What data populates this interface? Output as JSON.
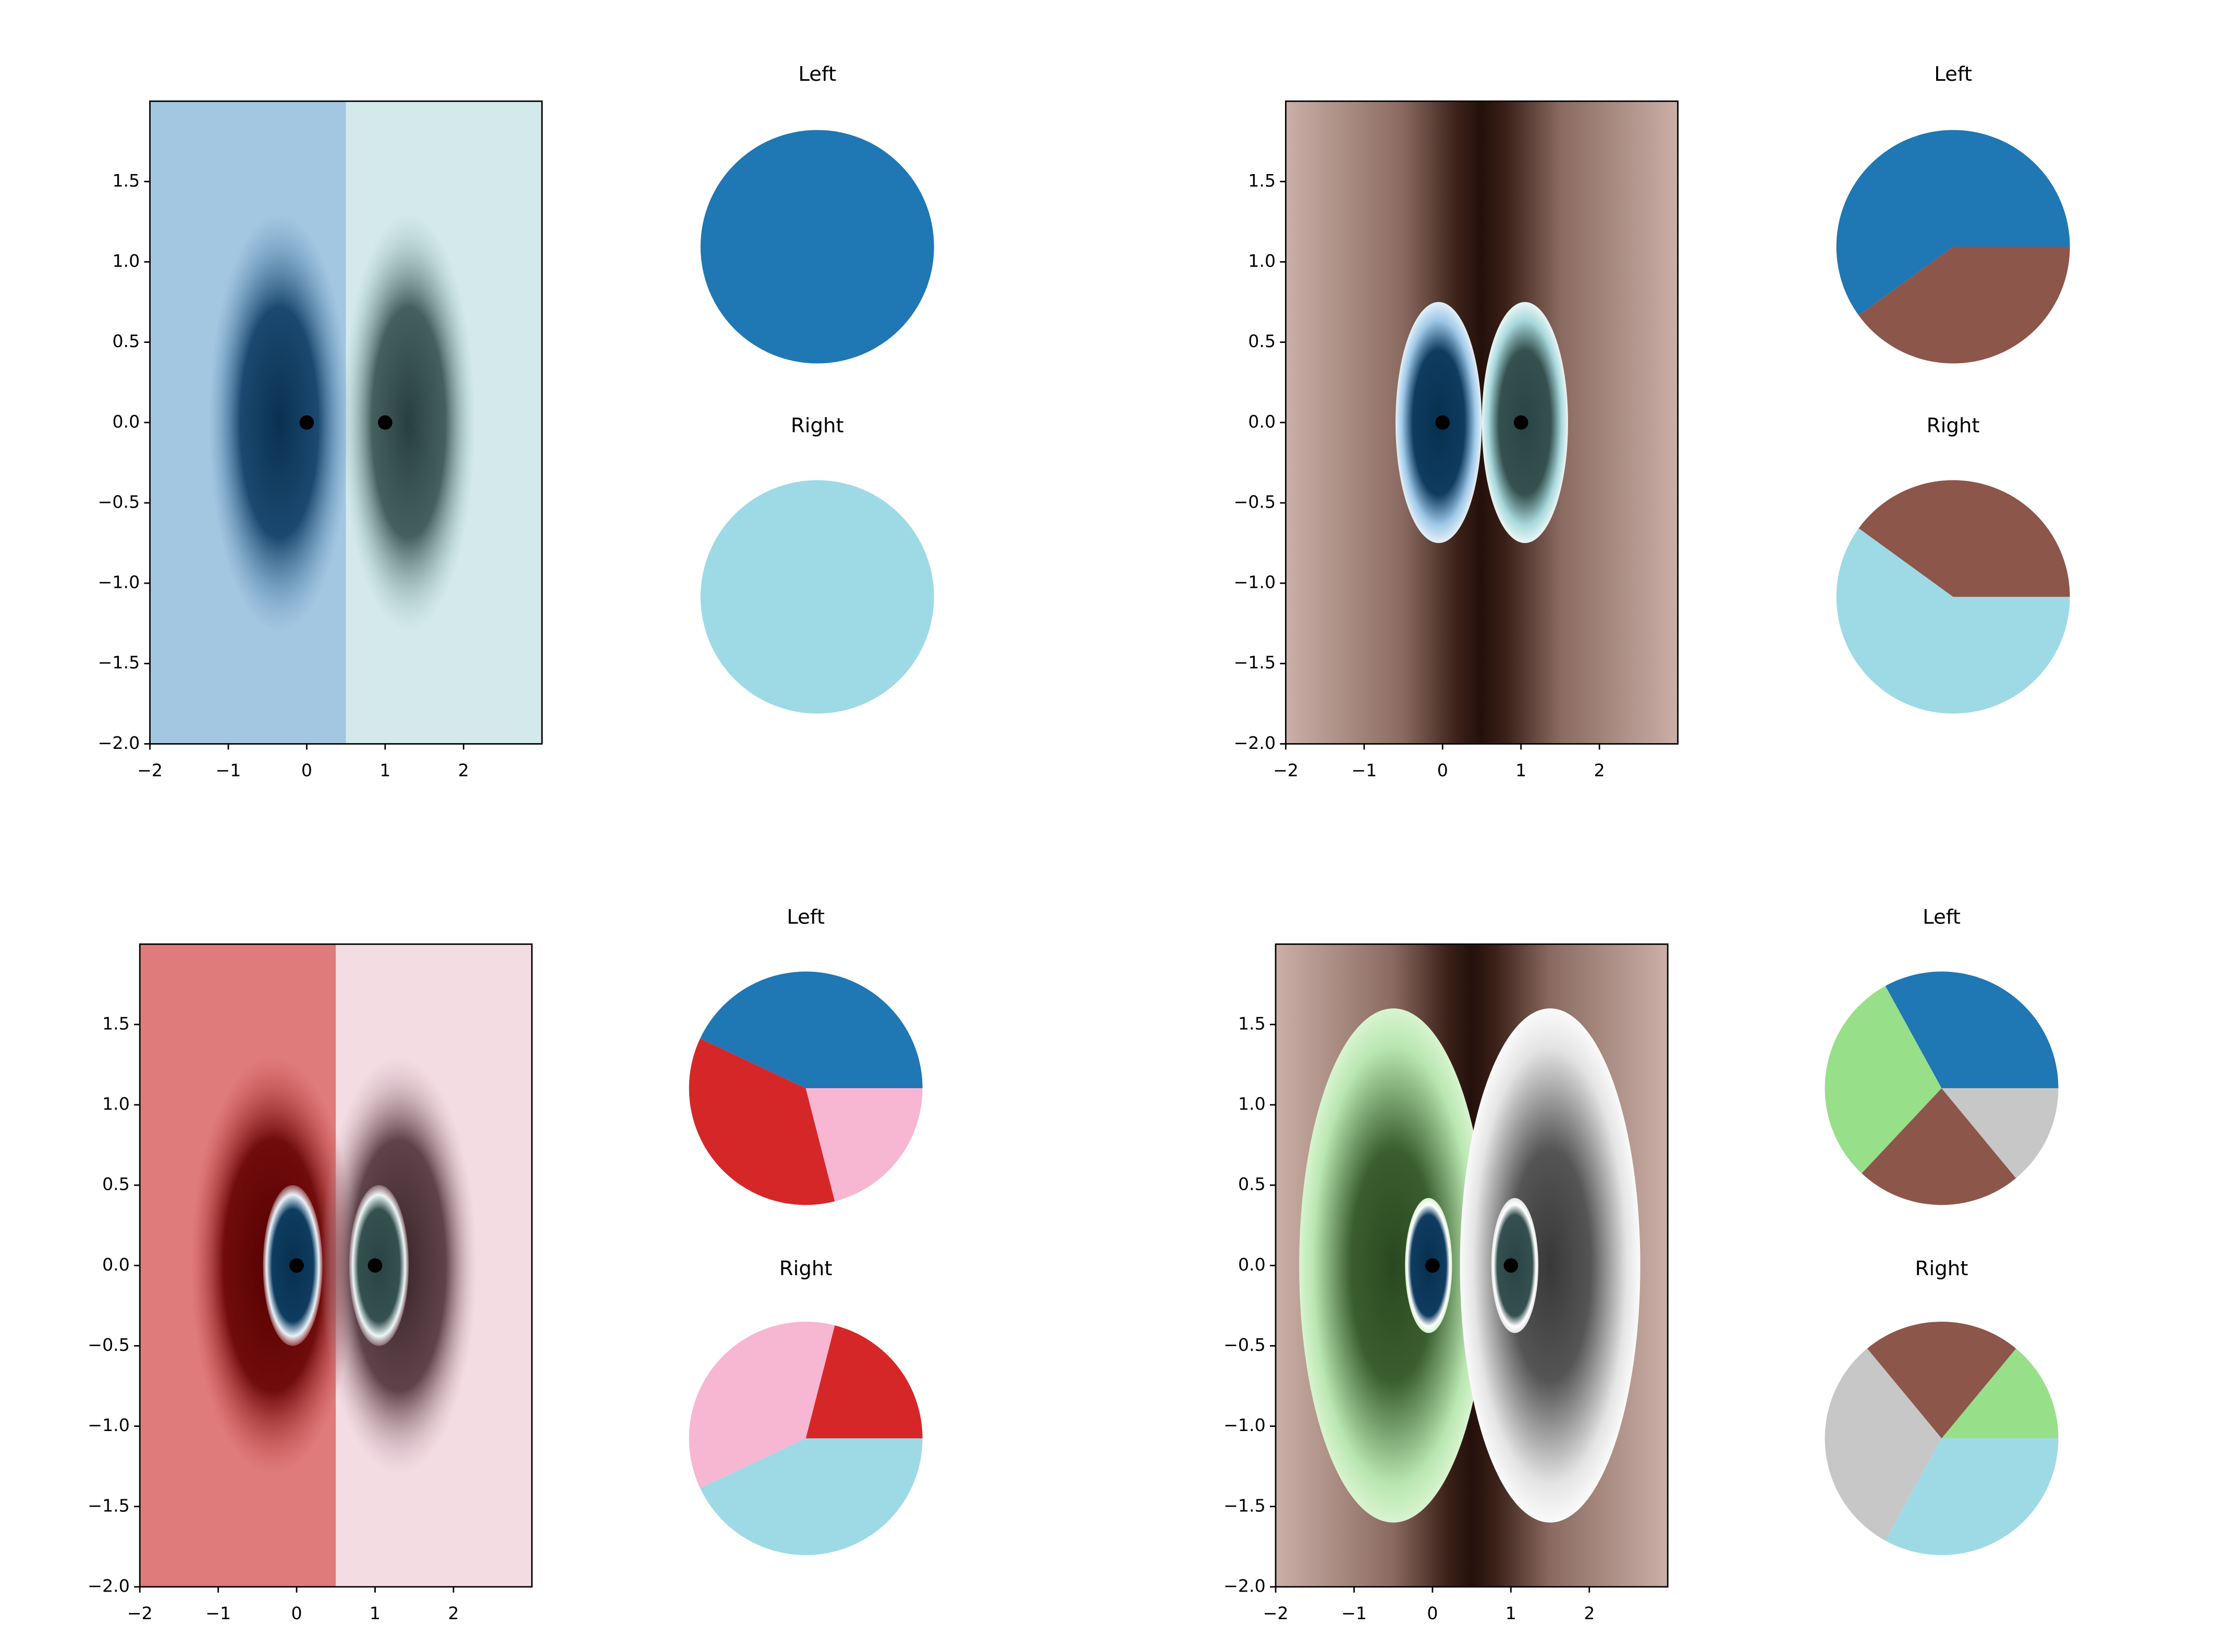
{
  "chart_data": [
    {
      "type": "image",
      "points": {
        "x": [
          0,
          1
        ],
        "y": [
          0,
          0
        ],
        "color": "#000000"
      },
      "xlim": [
        -2,
        3
      ],
      "ylim": [
        -2,
        2
      ],
      "xticks": [
        {
          "value": -2,
          "label": "−2"
        },
        {
          "value": -1,
          "label": "−1"
        },
        0,
        1,
        2
      ],
      "yticks": [
        {
          "value": -2,
          "label": "−2.0"
        },
        {
          "value": -1.5,
          "label": "−1.5"
        },
        {
          "value": -1,
          "label": "−1.0"
        },
        {
          "value": -0.5,
          "label": "−0.5"
        },
        {
          "value": 0,
          "label": "0.0"
        },
        0.5,
        {
          "value": 1,
          "label": "1.0"
        },
        1.5
      ]
    },
    {
      "type": "pie",
      "title": "Left",
      "values": [
        1
      ],
      "colors": [
        "#1f77b4"
      ]
    },
    {
      "type": "pie",
      "title": "Right",
      "values": [
        1
      ],
      "colors": [
        "#9edae5"
      ]
    },
    {
      "type": "image",
      "points": {
        "x": [
          0,
          1
        ],
        "y": [
          0,
          0
        ],
        "color": "#000000"
      },
      "xlim": [
        -2,
        3
      ],
      "ylim": [
        -2,
        2
      ],
      "xticks": [
        {
          "value": -2,
          "label": "−2"
        },
        {
          "value": -1,
          "label": "−1"
        },
        0,
        1,
        2
      ],
      "yticks": [
        {
          "value": -2,
          "label": "−2.0"
        },
        {
          "value": -1.5,
          "label": "−1.5"
        },
        {
          "value": -1,
          "label": "−1.0"
        },
        {
          "value": -0.5,
          "label": "−0.5"
        },
        {
          "value": 0,
          "label": "0.0"
        },
        0.5,
        {
          "value": 1,
          "label": "1.0"
        },
        1.5
      ]
    },
    {
      "type": "pie",
      "title": "Left",
      "values": [
        0.6,
        0.4
      ],
      "colors": [
        "#1f77b4",
        "#8c564b"
      ]
    },
    {
      "type": "pie",
      "title": "Right",
      "values": [
        0.4,
        0.6
      ],
      "colors": [
        "#8c564b",
        "#9edae5"
      ]
    },
    {
      "type": "image",
      "points": {
        "x": [
          0,
          1
        ],
        "y": [
          0,
          0
        ],
        "color": "#000000"
      },
      "xlim": [
        -2,
        3
      ],
      "ylim": [
        -2,
        2
      ],
      "xticks": [
        {
          "value": -2,
          "label": "−2"
        },
        {
          "value": -1,
          "label": "−1"
        },
        0,
        1,
        2
      ],
      "yticks": [
        {
          "value": -2,
          "label": "−2.0"
        },
        {
          "value": -1.5,
          "label": "−1.5"
        },
        {
          "value": -1,
          "label": "−1.0"
        },
        {
          "value": -0.5,
          "label": "−0.5"
        },
        {
          "value": 0,
          "label": "0.0"
        },
        0.5,
        {
          "value": 1,
          "label": "1.0"
        },
        1.5
      ]
    },
    {
      "type": "pie",
      "title": "Left",
      "values": [
        0.43,
        0.36,
        0.21
      ],
      "colors": [
        "#1f77b4",
        "#d62728",
        "#f7b6d2"
      ]
    },
    {
      "type": "pie",
      "title": "Right",
      "values": [
        0.21,
        0.36,
        0.43
      ],
      "colors": [
        "#d62728",
        "#f7b6d2",
        "#9edae5"
      ]
    },
    {
      "type": "image",
      "points": {
        "x": [
          0,
          1
        ],
        "y": [
          0,
          0
        ],
        "color": "#000000"
      },
      "xlim": [
        -2,
        3
      ],
      "ylim": [
        -2,
        2
      ],
      "xticks": [
        {
          "value": -2,
          "label": "−2"
        },
        {
          "value": -1,
          "label": "−1"
        },
        0,
        1,
        2
      ],
      "yticks": [
        {
          "value": -2,
          "label": "−2.0"
        },
        {
          "value": -1.5,
          "label": "−1.5"
        },
        {
          "value": -1,
          "label": "−1.0"
        },
        {
          "value": -0.5,
          "label": "−0.5"
        },
        {
          "value": 0,
          "label": "0.0"
        },
        0.5,
        {
          "value": 1,
          "label": "1.0"
        },
        1.5
      ]
    },
    {
      "type": "pie",
      "title": "Left",
      "values": [
        0.33,
        0.3,
        0.23,
        0.14
      ],
      "colors": [
        "#1f77b4",
        "#98df8a",
        "#8c564b",
        "#c7c7c7"
      ]
    },
    {
      "type": "pie",
      "title": "Right",
      "values": [
        0.14,
        0.22,
        0.31,
        0.33
      ],
      "colors": [
        "#98df8a",
        "#8c564b",
        "#c7c7c7",
        "#9edae5"
      ]
    }
  ]
}
